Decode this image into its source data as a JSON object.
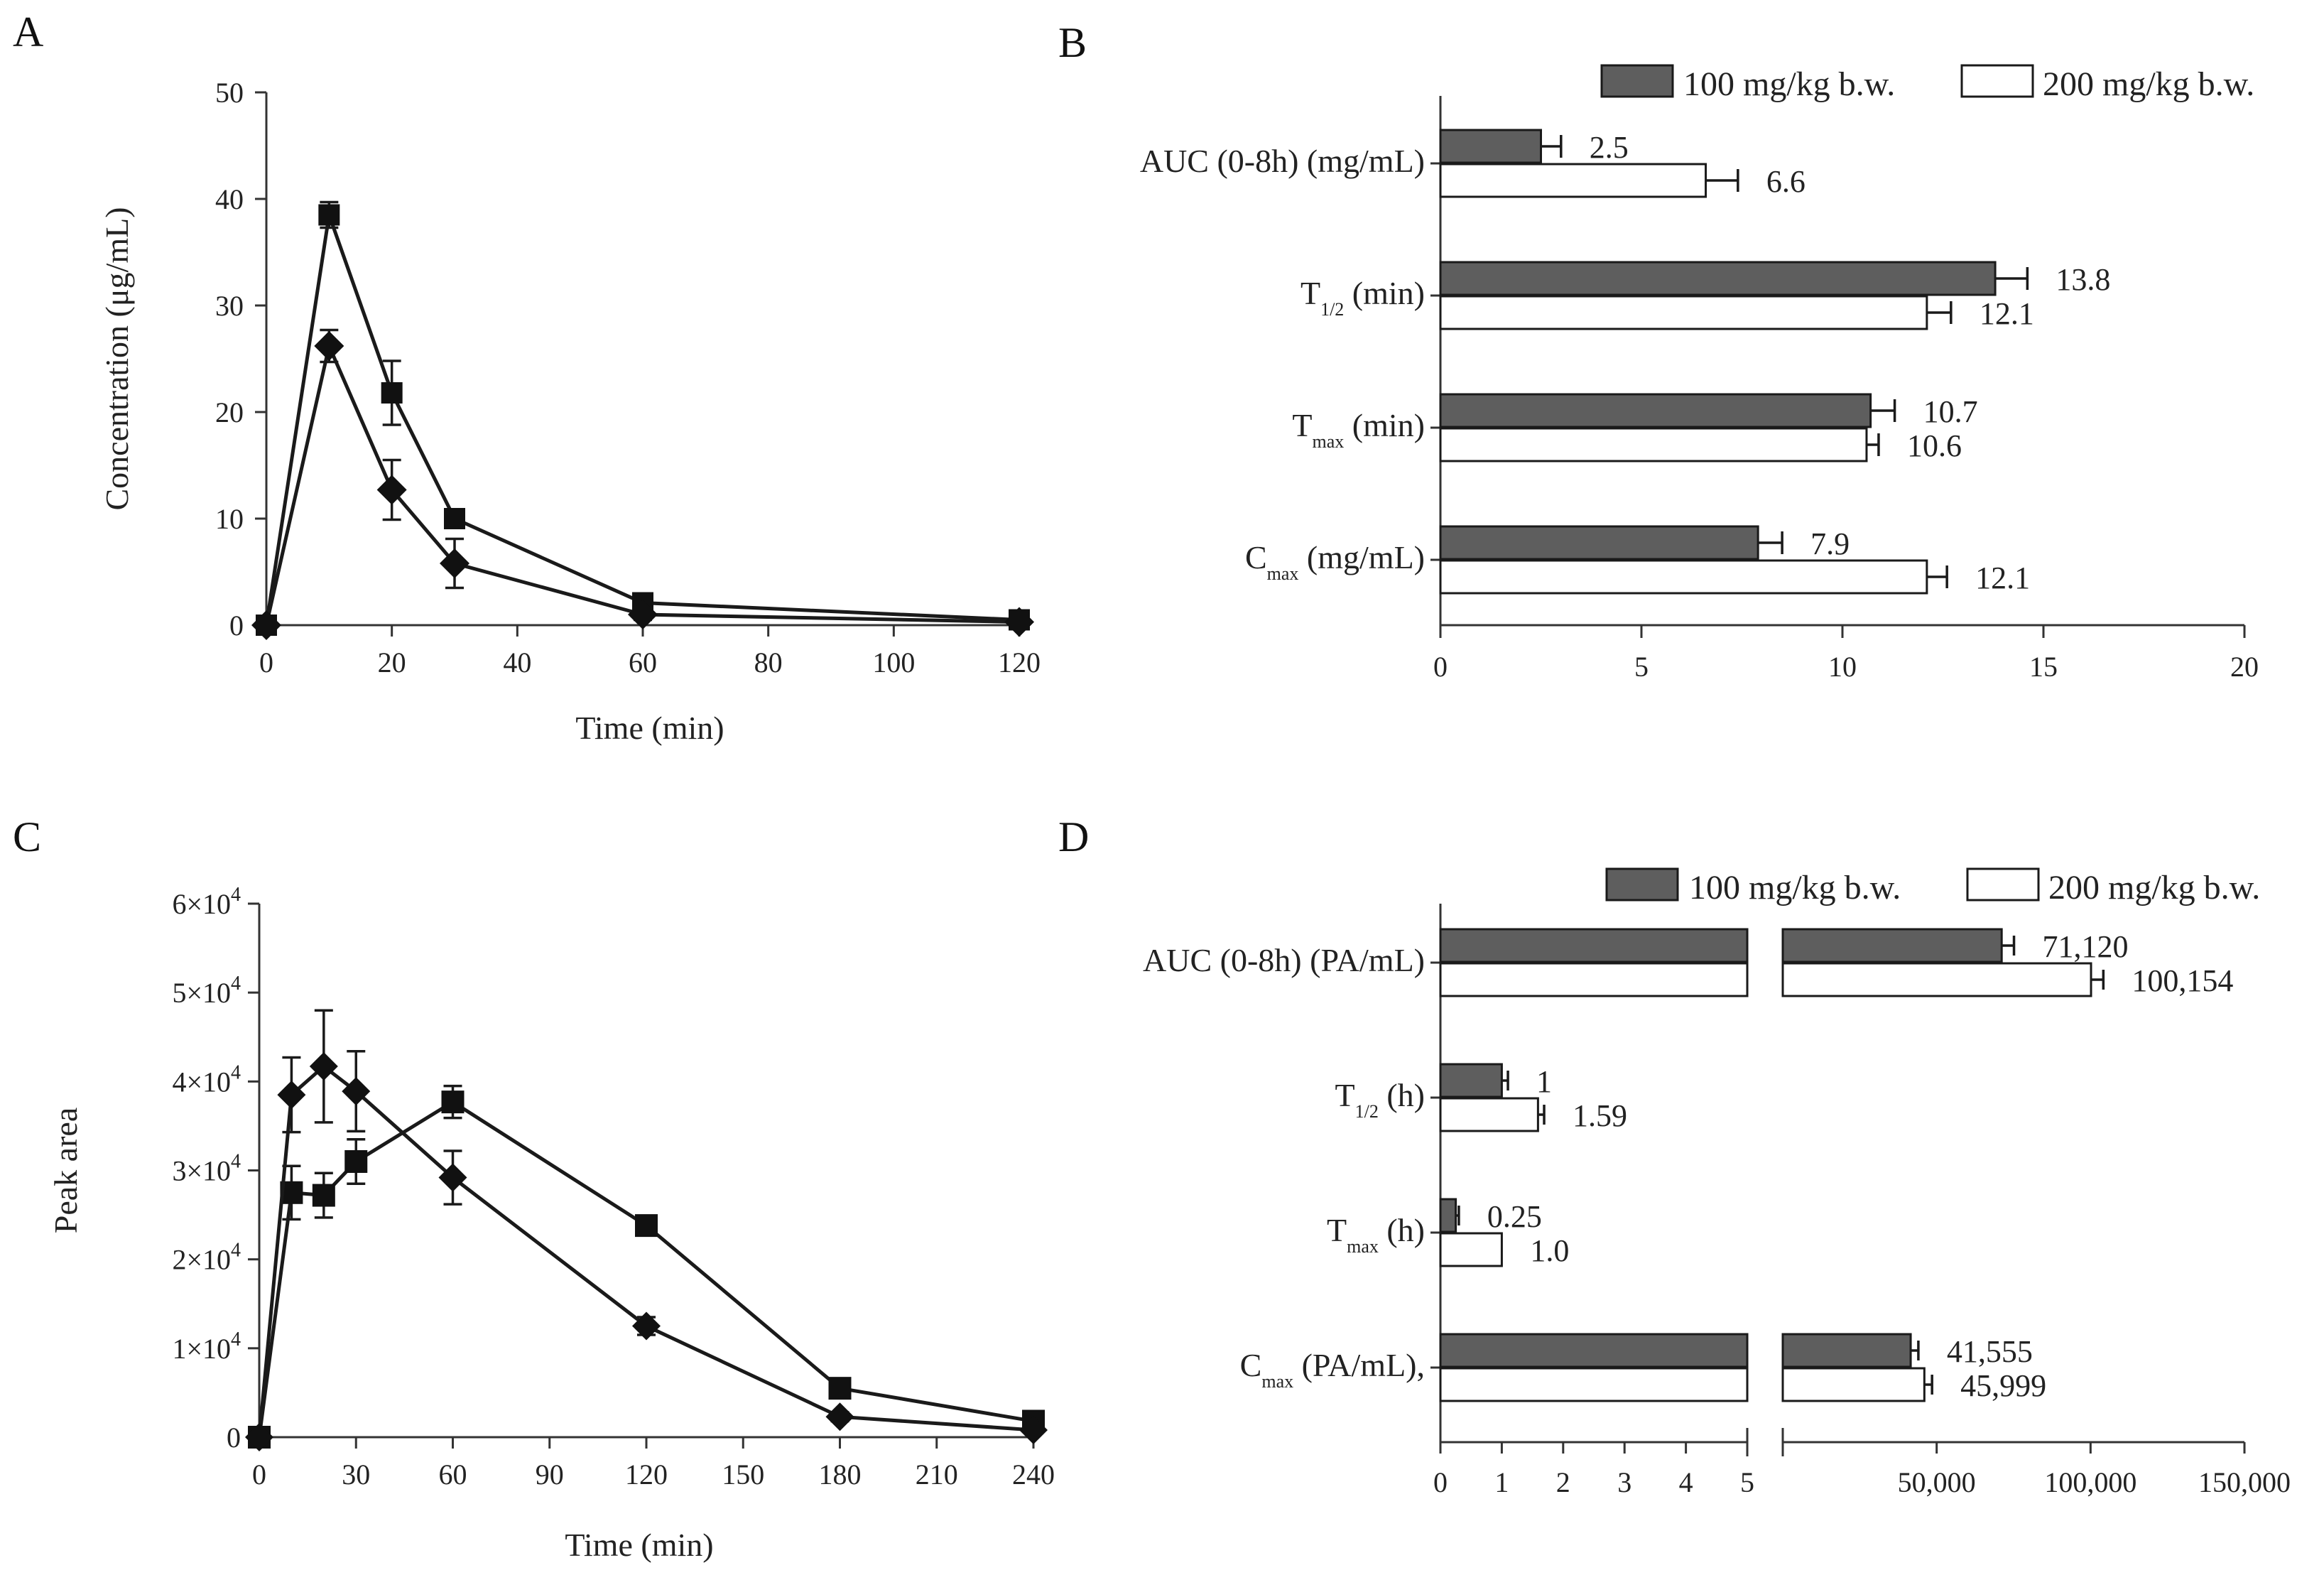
{
  "colors": {
    "dark_bar": "#5e5e5e",
    "light_bar": "#ffffff",
    "line": "#1a1a1a"
  },
  "chart_data": [
    {
      "panel": "A",
      "type": "line",
      "xlabel": "Time (min)",
      "ylabel": "Concentration (μg/mL)",
      "xlim": [
        0,
        120
      ],
      "ylim": [
        0,
        50
      ],
      "xticks": [
        "0",
        "20",
        "40",
        "60",
        "80",
        "100",
        "120"
      ],
      "yticks": [
        "0",
        "10",
        "20",
        "30",
        "40",
        "50"
      ],
      "series": [
        {
          "marker": "square",
          "x": [
            0,
            10,
            20,
            30,
            60,
            120
          ],
          "y": [
            0,
            38.5,
            21.8,
            10,
            2.1,
            0.5
          ],
          "err": [
            0,
            1.2,
            3,
            0.6,
            0.5,
            0.3
          ]
        },
        {
          "marker": "diamond",
          "x": [
            0,
            10,
            20,
            30,
            60,
            120
          ],
          "y": [
            0,
            26.2,
            12.7,
            5.8,
            1,
            0.3
          ],
          "err": [
            0,
            1.5,
            2.8,
            2.3,
            0.5,
            0.2
          ]
        }
      ]
    },
    {
      "panel": "B",
      "type": "bar",
      "orientation": "horizontal",
      "legend": [
        "100 mg/kg b.w.",
        "200 mg/kg b.w."
      ],
      "xlim": [
        0,
        20
      ],
      "xticks": [
        "0",
        "5",
        "10",
        "15",
        "20"
      ],
      "categories": [
        {
          "label": "AUC (0-8h) (mg/mL)",
          "main": "AUC (0-8h) (mg/mL)",
          "sub": "",
          "rest": ""
        },
        {
          "label": "T1/2 (min)",
          "main": "T",
          "sub": "1/2",
          "rest": " (min)"
        },
        {
          "label": "Tmax (min)",
          "main": "T",
          "sub": "max",
          "rest": " (min)"
        },
        {
          "label": "Cmax (mg/mL)",
          "main": "C",
          "sub": "max",
          "rest": " (mg/mL)"
        }
      ],
      "series": [
        {
          "name": "100 mg/kg b.w.",
          "values": [
            2.5,
            13.8,
            10.7,
            7.9
          ],
          "labels": [
            "2.5",
            "13.8",
            "10.7",
            "7.9"
          ],
          "err": [
            0.5,
            0.8,
            0.6,
            0.6
          ]
        },
        {
          "name": "200 mg/kg b.w.",
          "values": [
            6.6,
            12.1,
            10.6,
            12.1
          ],
          "labels": [
            "6.6",
            "12.1",
            "10.6",
            "12.1"
          ],
          "err": [
            0.8,
            0.6,
            0.3,
            0.5
          ]
        }
      ]
    },
    {
      "panel": "C",
      "type": "line",
      "xlabel": "Time (min)",
      "ylabel": "Peak area",
      "xlim": [
        0,
        240
      ],
      "ylim": [
        0,
        60000
      ],
      "xticks": [
        "0",
        "30",
        "60",
        "90",
        "120",
        "150",
        "180",
        "210",
        "240"
      ],
      "yticks": [
        {
          "value": 0,
          "mant": "0",
          "exp": ""
        },
        {
          "value": 10000,
          "mant": "1×10",
          "exp": "4"
        },
        {
          "value": 20000,
          "mant": "2×10",
          "exp": "4"
        },
        {
          "value": 30000,
          "mant": "3×10",
          "exp": "4"
        },
        {
          "value": 40000,
          "mant": "4×10",
          "exp": "4"
        },
        {
          "value": 50000,
          "mant": "5×10",
          "exp": "4"
        },
        {
          "value": 60000,
          "mant": "6×10",
          "exp": "4"
        }
      ],
      "series": [
        {
          "marker": "square",
          "x": [
            0,
            10,
            20,
            30,
            60,
            120,
            180,
            240
          ],
          "y": [
            0,
            27500,
            27200,
            31000,
            37700,
            23800,
            5500,
            1800
          ],
          "err": [
            0,
            3000,
            2500,
            2500,
            1800,
            0,
            0,
            0
          ]
        },
        {
          "marker": "diamond",
          "x": [
            0,
            10,
            20,
            30,
            60,
            120,
            180,
            240
          ],
          "y": [
            0,
            38500,
            41700,
            38900,
            29200,
            12500,
            2300,
            800
          ],
          "err": [
            0,
            4200,
            6300,
            4500,
            3000,
            1000,
            500,
            300
          ]
        }
      ]
    },
    {
      "panel": "D",
      "type": "bar",
      "orientation": "horizontal",
      "axis_break": true,
      "legend": [
        "100 mg/kg b.w.",
        "200 mg/kg b.w."
      ],
      "xlim_left": [
        0,
        5
      ],
      "xlim_right": [
        0,
        150000
      ],
      "xticks_left": [
        "0",
        "1",
        "2",
        "3",
        "4",
        "5"
      ],
      "xticks_right": [
        "50,000",
        "100,000",
        "150,000"
      ],
      "categories": [
        {
          "label": "AUC (0-8h) (PA/mL)",
          "main": "AUC (0-8h) (PA/mL)",
          "sub": "",
          "rest": ""
        },
        {
          "label": "T1/2 (h)",
          "main": "T",
          "sub": "1/2",
          "rest": " (h)"
        },
        {
          "label": "Tmax (h)",
          "main": "T",
          "sub": "max",
          "rest": " (h)"
        },
        {
          "label": "Cmax (PA/mL)",
          "main": "C",
          "sub": "max",
          "rest": " (PA/mL),"
        }
      ],
      "series": [
        {
          "name": "100 mg/kg b.w.",
          "values": [
            71120,
            1,
            0.25,
            41555
          ],
          "labels": [
            "71,120",
            "1",
            "0.25",
            "41,555"
          ],
          "err": [
            4000,
            0.1,
            0.05,
            2500
          ]
        },
        {
          "name": "200 mg/kg b.w.",
          "values": [
            100154,
            1.59,
            1.0,
            45999
          ],
          "labels": [
            "100,154",
            "1.59",
            "1.0",
            "45,999"
          ],
          "err": [
            4000,
            0.1,
            0,
            2500
          ]
        }
      ]
    }
  ]
}
